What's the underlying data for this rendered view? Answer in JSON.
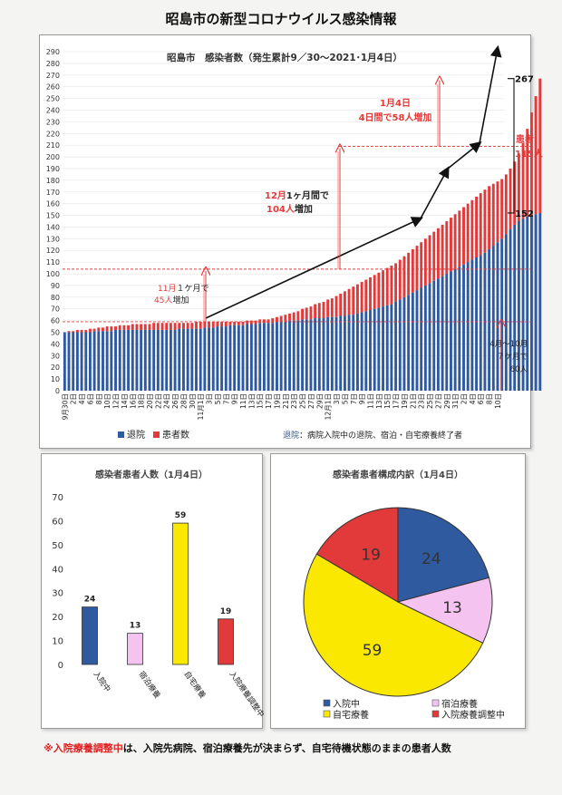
{
  "page": {
    "title": "昭島市の新型コロナウイルス感染情報",
    "footnote_mark": "※",
    "footnote_term": "入院療養調整中",
    "footnote_rest": "は、入院先病院、宿泊療養先が決まらず、自宅待機状態のままの患者人数"
  },
  "colors": {
    "blue": "#2f5aa0",
    "red": "#e23a3a",
    "pink": "#f5c3ef",
    "yellow": "#fbe800",
    "black": "#111111",
    "dashed": "#e33a3a"
  },
  "chart_data": [
    {
      "type": "bar",
      "title": "昭島市　感染者数（発生累計9／30～2021･1月4日）",
      "stacked": true,
      "ylim": [
        0,
        290
      ],
      "ytick_step": 10,
      "grid": true,
      "legend": {
        "position": "bottom-left",
        "entries": [
          "退院",
          "患者数"
        ]
      },
      "legend_note_key": "退院",
      "legend_note_text": "：病院入院中の退院、宿泊・自宅療養終了者",
      "x_tick_labels": [
        "9月30日",
        "2日",
        "4日",
        "6日",
        "8日",
        "10日",
        "12日",
        "14日",
        "16日",
        "18日",
        "20日",
        "22日",
        "24日",
        "26日",
        "28日",
        "30日",
        "11月1日",
        "3日",
        "5日",
        "7日",
        "9日",
        "11日",
        "13日",
        "15日",
        "17日",
        "19日",
        "21日",
        "23日",
        "25日",
        "27日",
        "29日",
        "12月1日",
        "3日",
        "5日",
        "7日",
        "9日",
        "11日",
        "13日",
        "15日",
        "17日",
        "19日",
        "21日",
        "23日",
        "25日",
        "27日",
        "29日",
        "31日",
        "2日",
        "4日",
        "6日",
        "8日",
        "10日"
      ],
      "series": [
        {
          "name": "退院",
          "color": "#2f5aa0",
          "values": [
            50,
            50,
            50,
            50,
            50,
            50,
            50,
            51,
            51,
            51,
            51,
            51,
            52,
            52,
            52,
            52,
            52,
            52,
            52,
            52,
            52,
            52,
            52,
            52,
            52,
            52,
            52,
            53,
            53,
            53,
            53,
            53,
            53,
            54,
            54,
            54,
            55,
            55,
            55,
            56,
            56,
            56,
            56,
            57,
            57,
            57,
            58,
            58,
            58,
            58,
            59,
            59,
            59,
            60,
            60,
            60,
            61,
            61,
            61,
            62,
            62,
            62,
            63,
            63,
            63,
            64,
            64,
            65,
            65,
            66,
            67,
            68,
            69,
            70,
            71,
            72,
            73,
            74,
            76,
            78,
            80,
            82,
            84,
            86,
            88,
            90,
            92,
            94,
            96,
            98,
            100,
            102,
            104,
            106,
            108,
            110,
            112,
            114,
            116,
            118,
            121,
            124,
            127,
            130,
            134,
            138,
            142,
            145,
            147,
            149,
            150,
            151,
            152
          ]
        },
        {
          "name": "患者数",
          "color": "#e23a3a",
          "values": [
            0,
            1,
            1,
            2,
            2,
            2,
            3,
            2,
            3,
            3,
            4,
            4,
            3,
            4,
            4,
            4,
            5,
            5,
            5,
            5,
            5,
            6,
            6,
            6,
            6,
            6,
            6,
            5,
            5,
            5,
            5,
            6,
            6,
            5,
            5,
            5,
            4,
            4,
            4,
            3,
            3,
            3,
            3,
            3,
            3,
            3,
            3,
            3,
            3,
            4,
            4,
            5,
            6,
            6,
            7,
            8,
            9,
            10,
            11,
            12,
            13,
            14,
            15,
            16,
            18,
            19,
            21,
            22,
            24,
            25,
            26,
            27,
            28,
            29,
            30,
            31,
            32,
            33,
            33,
            34,
            35,
            36,
            37,
            38,
            39,
            40,
            41,
            42,
            43,
            44,
            45,
            46,
            47,
            48,
            49,
            50,
            51,
            52,
            53,
            54,
            54,
            53,
            52,
            51,
            51,
            52,
            54,
            58,
            65,
            75,
            88,
            101,
            115
          ]
        }
      ],
      "annotations": {
        "nov_month": "11月",
        "nov_rest": "１ケ月で",
        "nov_count": "45人",
        "nov_suffix": "増加",
        "dec_month": "12月",
        "dec_rest": "1ヶ月間で",
        "dec_count": "104人",
        "dec_suffix": "増加",
        "jan_line1": "1月4日",
        "jan_line2": "4日間で58人増加",
        "total": "267",
        "patients_label": "患者",
        "patients_count": "115人",
        "recovered": "152",
        "oct_line1": "4月～10月",
        "oct_line2": "７ケ月で",
        "oct_line3": "60人"
      }
    },
    {
      "type": "bar",
      "title": "感染者患者人数（1月4日）",
      "ylim": [
        0,
        70
      ],
      "ytick_step": 10,
      "categories": [
        "入院中",
        "宿泊療養",
        "自宅療養",
        "入院療養調整中"
      ],
      "values": [
        24,
        13,
        59,
        19
      ],
      "colors": [
        "#2f5aa0",
        "#f5c3ef",
        "#fbe800",
        "#e23a3a"
      ]
    },
    {
      "type": "pie",
      "title": "感染者患者構成内訳（1月4日）",
      "labels": [
        "入院中",
        "宿泊療養",
        "自宅療養",
        "入院療養調整中"
      ],
      "values": [
        24,
        13,
        59,
        19
      ],
      "colors": [
        "#2f5aa0",
        "#f5c3ef",
        "#fbe800",
        "#e23a3a"
      ],
      "legend": {
        "position": "bottom"
      }
    }
  ]
}
